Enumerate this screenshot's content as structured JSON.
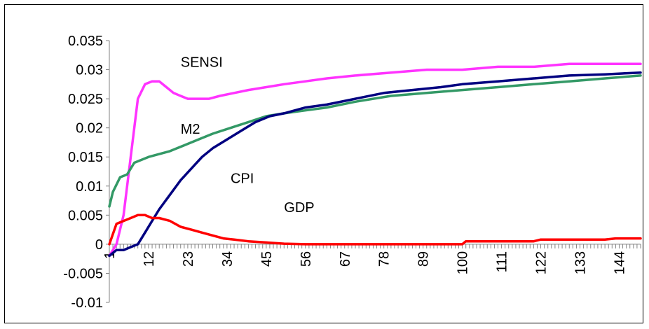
{
  "chart_data": {
    "type": "line",
    "title": "",
    "xlabel": "",
    "ylabel": "",
    "ylim": [
      -0.01,
      0.035
    ],
    "y_ticks": [
      "0.035",
      "0.03",
      "0.025",
      "0.02",
      "0.015",
      "0.01",
      "0.005",
      "0",
      "-0.005",
      "-0.01"
    ],
    "x_ticks": [
      "1",
      "12",
      "23",
      "34",
      "45",
      "56",
      "67",
      "78",
      "89",
      "100",
      "111",
      "122",
      "133",
      "144"
    ],
    "x_range": [
      1,
      150
    ],
    "grid": false,
    "legend": "none",
    "series": [
      {
        "name": "SENSI",
        "color": "#ff33ff",
        "points": [
          [
            1,
            -0.002
          ],
          [
            3,
            0.0
          ],
          [
            5,
            0.005
          ],
          [
            7,
            0.015
          ],
          [
            9,
            0.025
          ],
          [
            11,
            0.0275
          ],
          [
            13,
            0.028
          ],
          [
            15,
            0.028
          ],
          [
            17,
            0.027
          ],
          [
            19,
            0.026
          ],
          [
            21,
            0.0255
          ],
          [
            23,
            0.025
          ],
          [
            26,
            0.025
          ],
          [
            29,
            0.025
          ],
          [
            32,
            0.0255
          ],
          [
            36,
            0.026
          ],
          [
            40,
            0.0265
          ],
          [
            45,
            0.027
          ],
          [
            50,
            0.0275
          ],
          [
            56,
            0.028
          ],
          [
            62,
            0.0285
          ],
          [
            70,
            0.029
          ],
          [
            80,
            0.0295
          ],
          [
            90,
            0.03
          ],
          [
            100,
            0.03
          ],
          [
            110,
            0.0305
          ],
          [
            120,
            0.0305
          ],
          [
            130,
            0.031
          ],
          [
            140,
            0.031
          ],
          [
            150,
            0.031
          ]
        ]
      },
      {
        "name": "M2",
        "color": "#339966",
        "points": [
          [
            1,
            0.0065
          ],
          [
            2,
            0.009
          ],
          [
            4,
            0.0115
          ],
          [
            6,
            0.012
          ],
          [
            8,
            0.014
          ],
          [
            10,
            0.0145
          ],
          [
            12,
            0.015
          ],
          [
            15,
            0.0155
          ],
          [
            18,
            0.016
          ],
          [
            22,
            0.017
          ],
          [
            26,
            0.018
          ],
          [
            30,
            0.019
          ],
          [
            35,
            0.02
          ],
          [
            40,
            0.021
          ],
          [
            45,
            0.022
          ],
          [
            50,
            0.0225
          ],
          [
            56,
            0.023
          ],
          [
            62,
            0.0235
          ],
          [
            70,
            0.0245
          ],
          [
            80,
            0.0255
          ],
          [
            90,
            0.026
          ],
          [
            100,
            0.0265
          ],
          [
            110,
            0.027
          ],
          [
            120,
            0.0275
          ],
          [
            130,
            0.028
          ],
          [
            140,
            0.0285
          ],
          [
            150,
            0.029
          ]
        ]
      },
      {
        "name": "CPI",
        "color": "#000080",
        "points": [
          [
            1,
            -0.002
          ],
          [
            3,
            -0.001
          ],
          [
            5,
            -0.001
          ],
          [
            7,
            -0.0005
          ],
          [
            9,
            0.0
          ],
          [
            11,
            0.002
          ],
          [
            13,
            0.004
          ],
          [
            15,
            0.006
          ],
          [
            18,
            0.0085
          ],
          [
            21,
            0.011
          ],
          [
            24,
            0.013
          ],
          [
            27,
            0.015
          ],
          [
            30,
            0.0165
          ],
          [
            34,
            0.018
          ],
          [
            38,
            0.0195
          ],
          [
            42,
            0.021
          ],
          [
            46,
            0.022
          ],
          [
            50,
            0.0225
          ],
          [
            56,
            0.0235
          ],
          [
            62,
            0.024
          ],
          [
            70,
            0.025
          ],
          [
            78,
            0.026
          ],
          [
            86,
            0.0265
          ],
          [
            94,
            0.027
          ],
          [
            100,
            0.0275
          ],
          [
            110,
            0.028
          ],
          [
            120,
            0.0285
          ],
          [
            130,
            0.029
          ],
          [
            140,
            0.0292
          ],
          [
            150,
            0.0295
          ]
        ]
      },
      {
        "name": "GDP",
        "color": "#ff0000",
        "points": [
          [
            1,
            0.0
          ],
          [
            3,
            0.0035
          ],
          [
            5,
            0.004
          ],
          [
            7,
            0.0045
          ],
          [
            9,
            0.005
          ],
          [
            11,
            0.005
          ],
          [
            13,
            0.0045
          ],
          [
            15,
            0.0045
          ],
          [
            18,
            0.004
          ],
          [
            21,
            0.003
          ],
          [
            24,
            0.0025
          ],
          [
            27,
            0.002
          ],
          [
            30,
            0.0015
          ],
          [
            33,
            0.001
          ],
          [
            36,
            0.0008
          ],
          [
            40,
            0.0005
          ],
          [
            45,
            0.0003
          ],
          [
            50,
            0.0001
          ],
          [
            56,
            0.0
          ],
          [
            70,
            0.0
          ],
          [
            100,
            0.0
          ],
          [
            101,
            0.0005
          ],
          [
            120,
            0.0005
          ],
          [
            122,
            0.0008
          ],
          [
            140,
            0.0008
          ],
          [
            143,
            0.001
          ],
          [
            150,
            0.001
          ]
        ]
      }
    ],
    "annotations": [
      {
        "text": "SENSI",
        "x": 21,
        "y": 0.0305
      },
      {
        "text": "M2",
        "x": 21,
        "y": 0.019
      },
      {
        "text": "CPI",
        "x": 35,
        "y": 0.0105
      },
      {
        "text": "GDP",
        "x": 50,
        "y": 0.0055
      }
    ]
  }
}
